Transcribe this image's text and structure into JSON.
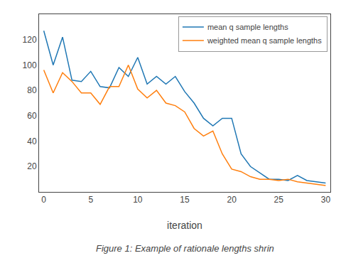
{
  "chart_data": {
    "type": "line",
    "x": [
      0,
      1,
      2,
      3,
      4,
      5,
      6,
      7,
      8,
      9,
      10,
      11,
      12,
      13,
      14,
      15,
      16,
      17,
      18,
      19,
      20,
      21,
      22,
      23,
      24,
      25,
      26,
      27,
      28,
      29,
      30
    ],
    "series": [
      {
        "name": "mean q sample lengths",
        "color": "#1f77b4",
        "values": [
          127,
          100,
          122,
          88,
          87,
          95,
          83,
          82,
          98,
          91,
          106,
          85,
          91,
          85,
          91,
          79,
          70,
          58,
          52,
          58,
          58,
          30,
          20,
          15,
          10,
          10,
          9,
          13,
          9,
          8,
          7
        ]
      },
      {
        "name": "weighted mean q sample lengths",
        "color": "#ff7f0e",
        "values": [
          96,
          78,
          94,
          87,
          78,
          78,
          69,
          83,
          83,
          100,
          81,
          74,
          80,
          70,
          68,
          63,
          50,
          44,
          48,
          30,
          18,
          16,
          12,
          10,
          10,
          9,
          10,
          8,
          7,
          6,
          5
        ]
      }
    ],
    "xlabel": "iteration",
    "annotations": [
      "Figure 1: Example of rationale lengths shrin"
    ],
    "xlim": [
      -0.5,
      30.5
    ],
    "xticks": [
      0,
      5,
      10,
      15,
      20,
      25,
      30
    ],
    "ylim": [
      0,
      140
    ],
    "yticks": [
      20,
      40,
      60,
      80,
      100,
      120
    ],
    "grid": false,
    "legend": "upper right"
  }
}
